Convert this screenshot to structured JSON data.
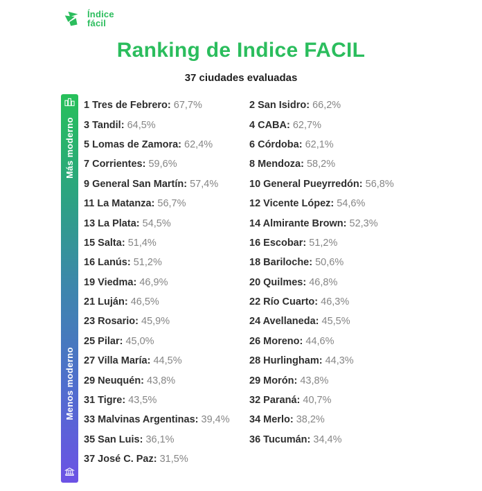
{
  "logo": {
    "line1": "Índice",
    "line2": "fácil"
  },
  "header": {
    "title": "Ranking de Indice FACIL",
    "subtitle": "37 ciudades evaluadas"
  },
  "scale": {
    "top_label": "Más moderno",
    "bottom_label": "Menos moderno",
    "top_icon": "city-buildings-icon",
    "bottom_icon": "bank-building-icon",
    "gradient_stops": [
      "#27c05a",
      "#2ba57f",
      "#3d86ad",
      "#4f6ecd",
      "#6c52e5"
    ]
  },
  "colors": {
    "brand_green": "#2bbd5d",
    "label_dark": "#2e2e2e",
    "value_gray": "#858585"
  },
  "list": {
    "rows": [
      {
        "left": {
          "label": "1 Tres de Febrero:",
          "value": "67,7%"
        },
        "right": {
          "label": "2 San Isidro:",
          "value": "66,2%"
        }
      },
      {
        "left": {
          "label": "3 Tandil:",
          "value": "64,5%"
        },
        "right": {
          "label": "4 CABA:",
          "value": "62,7%"
        }
      },
      {
        "left": {
          "label": "5 Lomas de Zamora:",
          "value": "62,4%"
        },
        "right": {
          "label": "6 Córdoba:",
          "value": "62,1%"
        }
      },
      {
        "left": {
          "label": "7 Corrientes:",
          "value": "59,6%"
        },
        "right": {
          "label": "8 Mendoza:",
          "value": "58,2%"
        }
      },
      {
        "left": {
          "label": "9 General San Martín:",
          "value": "57,4%"
        },
        "right": {
          "label": "10 General Pueyrredón:",
          "value": "56,8%"
        }
      },
      {
        "left": {
          "label": "11 La Matanza:",
          "value": "56,7%"
        },
        "right": {
          "label": "12 Vicente López:",
          "value": "54,6%"
        }
      },
      {
        "left": {
          "label": "13 La Plata:",
          "value": "54,5%"
        },
        "right": {
          "label": "14 Almirante Brown:",
          "value": "52,3%"
        }
      },
      {
        "left": {
          "label": "15 Salta:",
          "value": "51,4%"
        },
        "right": {
          "label": "16 Escobar:",
          "value": "51,2%"
        }
      },
      {
        "left": {
          "label": "16 Lanús:",
          "value": "51,2%"
        },
        "right": {
          "label": "18 Bariloche:",
          "value": "50,6%"
        }
      },
      {
        "left": {
          "label": "19 Viedma:",
          "value": "46,9%"
        },
        "right": {
          "label": "20 Quilmes:",
          "value": "46,8%"
        }
      },
      {
        "left": {
          "label": "21 Luján:",
          "value": "46,5%"
        },
        "right": {
          "label": "22 Río Cuarto:",
          "value": "46,3%"
        }
      },
      {
        "left": {
          "label": "23 Rosario:",
          "value": "45,9%"
        },
        "right": {
          "label": "24 Avellaneda:",
          "value": "45,5%"
        }
      },
      {
        "left": {
          "label": "25 Pilar:",
          "value": "45,0%"
        },
        "right": {
          "label": "26 Moreno:",
          "value": "44,6%"
        }
      },
      {
        "left": {
          "label": "27 Villa María:",
          "value": "44,5%"
        },
        "right": {
          "label": "28 Hurlingham:",
          "value": "44,3%"
        }
      },
      {
        "left": {
          "label": "29 Neuquén:",
          "value": "43,8%"
        },
        "right": {
          "label": "29 Morón:",
          "value": "43,8%"
        }
      },
      {
        "left": {
          "label": "31 Tigre:",
          "value": "43,5%"
        },
        "right": {
          "label": "32 Paraná:",
          "value": "40,7%"
        }
      },
      {
        "left": {
          "label": "33 Malvinas Argentinas:",
          "value": "39,4%"
        },
        "right": {
          "label": "34 Merlo:",
          "value": "38,2%"
        }
      },
      {
        "left": {
          "label": "35 San Luis:",
          "value": "36,1%"
        },
        "right": {
          "label": "36 Tucumán:",
          "value": "34,4%"
        }
      },
      {
        "left": {
          "label": "37 José C. Paz:",
          "value": "31,5%"
        },
        "right": null
      }
    ]
  },
  "chart_data": {
    "type": "table",
    "title": "Ranking de Indice FACIL",
    "subtitle": "37 ciudades evaluadas",
    "scale_top_label": "Más moderno",
    "scale_bottom_label": "Menos moderno",
    "columns": [
      "rank",
      "city",
      "indice_facil_pct"
    ],
    "rows": [
      [
        1,
        "Tres de Febrero",
        67.7
      ],
      [
        2,
        "San Isidro",
        66.2
      ],
      [
        3,
        "Tandil",
        64.5
      ],
      [
        4,
        "CABA",
        62.7
      ],
      [
        5,
        "Lomas de Zamora",
        62.4
      ],
      [
        6,
        "Córdoba",
        62.1
      ],
      [
        7,
        "Corrientes",
        59.6
      ],
      [
        8,
        "Mendoza",
        58.2
      ],
      [
        9,
        "General San Martín",
        57.4
      ],
      [
        10,
        "General Pueyrredón",
        56.8
      ],
      [
        11,
        "La Matanza",
        56.7
      ],
      [
        12,
        "Vicente López",
        54.6
      ],
      [
        13,
        "La Plata",
        54.5
      ],
      [
        14,
        "Almirante Brown",
        52.3
      ],
      [
        15,
        "Salta",
        51.4
      ],
      [
        16,
        "Escobar",
        51.2
      ],
      [
        16,
        "Lanús",
        51.2
      ],
      [
        18,
        "Bariloche",
        50.6
      ],
      [
        19,
        "Viedma",
        46.9
      ],
      [
        20,
        "Quilmes",
        46.8
      ],
      [
        21,
        "Luján",
        46.5
      ],
      [
        22,
        "Río Cuarto",
        46.3
      ],
      [
        23,
        "Rosario",
        45.9
      ],
      [
        24,
        "Avellaneda",
        45.5
      ],
      [
        25,
        "Pilar",
        45.0
      ],
      [
        26,
        "Moreno",
        44.6
      ],
      [
        27,
        "Villa María",
        44.5
      ],
      [
        28,
        "Hurlingham",
        44.3
      ],
      [
        29,
        "Neuquén",
        43.8
      ],
      [
        29,
        "Morón",
        43.8
      ],
      [
        31,
        "Tigre",
        43.5
      ],
      [
        32,
        "Paraná",
        40.7
      ],
      [
        33,
        "Malvinas Argentinas",
        39.4
      ],
      [
        34,
        "Merlo",
        38.2
      ],
      [
        35,
        "San Luis",
        36.1
      ],
      [
        36,
        "Tucumán",
        34.4
      ],
      [
        37,
        "José C. Paz",
        31.5
      ]
    ]
  }
}
